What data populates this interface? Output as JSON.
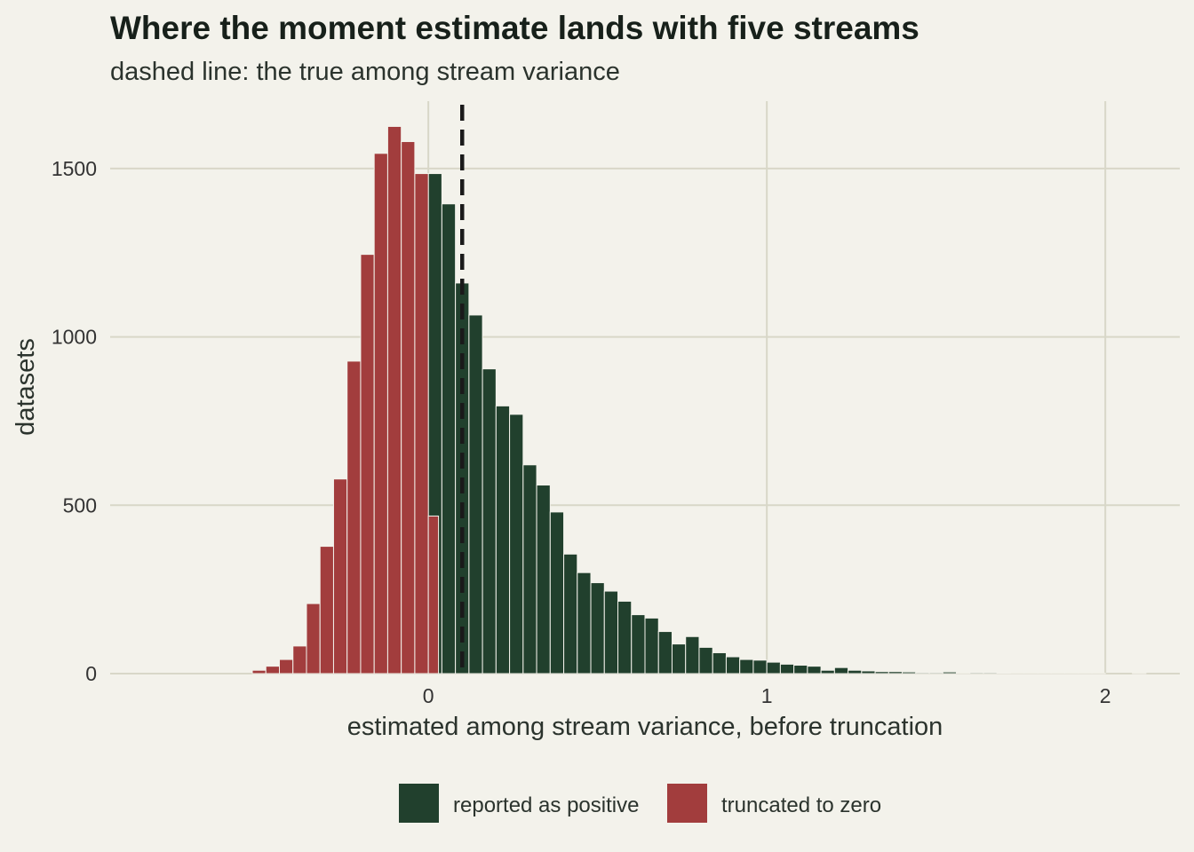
{
  "chart_data": {
    "type": "bar",
    "title": "Where the moment estimate lands with five streams",
    "subtitle": "dashed line: the true among stream variance",
    "xlabel": "estimated among stream variance, before truncation",
    "ylabel": "datasets",
    "xlim": [
      -0.94,
      2.22
    ],
    "ylim": [
      0,
      1700
    ],
    "x_ticks": [
      0,
      1,
      2
    ],
    "x_tick_labels": [
      "0",
      "1",
      "2"
    ],
    "y_ticks": [
      0,
      500,
      1000,
      1500
    ],
    "y_tick_labels": [
      "0",
      "500",
      "1000",
      "1500"
    ],
    "bin_width": 0.04,
    "true_value": 0.1,
    "grid": true,
    "legend_position": "bottom",
    "colors": {
      "positive": "#21402d",
      "truncated": "#a23d3d",
      "reference_line": "#1a1a1a"
    },
    "series": [
      {
        "name": "reported as positive",
        "color": "#21402d",
        "bins": [
          [
            0,
            0.04,
            1485
          ],
          [
            0.04,
            0.08,
            1395
          ],
          [
            0.08,
            0.12,
            1160
          ],
          [
            0.12,
            0.16,
            1065
          ],
          [
            0.16,
            0.2,
            905
          ],
          [
            0.2,
            0.24,
            795
          ],
          [
            0.24,
            0.28,
            770
          ],
          [
            0.28,
            0.32,
            620
          ],
          [
            0.32,
            0.36,
            560
          ],
          [
            0.36,
            0.4,
            480
          ],
          [
            0.4,
            0.44,
            355
          ],
          [
            0.44,
            0.48,
            300
          ],
          [
            0.48,
            0.52,
            270
          ],
          [
            0.52,
            0.56,
            245
          ],
          [
            0.56,
            0.6,
            215
          ],
          [
            0.6,
            0.64,
            175
          ],
          [
            0.64,
            0.68,
            165
          ],
          [
            0.68,
            0.72,
            125
          ],
          [
            0.72,
            0.76,
            88
          ],
          [
            0.76,
            0.8,
            110
          ],
          [
            0.8,
            0.84,
            78
          ],
          [
            0.84,
            0.88,
            62
          ],
          [
            0.88,
            0.92,
            50
          ],
          [
            0.92,
            0.96,
            42
          ],
          [
            0.96,
            1.0,
            40
          ],
          [
            1.0,
            1.04,
            34
          ],
          [
            1.04,
            1.08,
            28
          ],
          [
            1.08,
            1.12,
            25
          ],
          [
            1.12,
            1.16,
            22
          ],
          [
            1.16,
            1.2,
            10
          ],
          [
            1.2,
            1.24,
            18
          ],
          [
            1.24,
            1.28,
            10
          ],
          [
            1.28,
            1.32,
            8
          ],
          [
            1.32,
            1.36,
            6
          ],
          [
            1.36,
            1.4,
            6
          ],
          [
            1.4,
            1.44,
            5
          ],
          [
            1.44,
            1.48,
            3
          ],
          [
            1.48,
            1.52,
            3
          ],
          [
            1.52,
            1.56,
            5
          ],
          [
            1.56,
            1.6,
            1
          ],
          [
            1.6,
            1.64,
            3
          ],
          [
            1.64,
            1.68,
            3
          ],
          [
            1.68,
            1.72,
            2
          ],
          [
            1.72,
            1.76,
            1
          ],
          [
            1.76,
            1.8,
            1
          ],
          [
            1.8,
            1.84,
            1
          ],
          [
            1.84,
            1.88,
            1
          ],
          [
            1.88,
            1.92,
            1
          ],
          [
            1.92,
            1.96,
            1
          ],
          [
            1.96,
            2.0,
            1
          ],
          [
            2.0,
            2.04,
            0
          ],
          [
            2.04,
            2.08,
            0
          ],
          [
            2.08,
            2.12,
            1
          ]
        ]
      },
      {
        "name": "truncated to zero",
        "color": "#a23d3d",
        "bins": [
          [
            -0.52,
            -0.48,
            10
          ],
          [
            -0.48,
            -0.44,
            22
          ],
          [
            -0.44,
            -0.4,
            42
          ],
          [
            -0.4,
            -0.36,
            82
          ],
          [
            -0.36,
            -0.32,
            208
          ],
          [
            -0.32,
            -0.28,
            378
          ],
          [
            -0.28,
            -0.24,
            578
          ],
          [
            -0.24,
            -0.2,
            928
          ],
          [
            -0.2,
            -0.16,
            1245
          ],
          [
            -0.16,
            -0.12,
            1545
          ],
          [
            -0.12,
            -0.08,
            1625
          ],
          [
            -0.08,
            -0.04,
            1580
          ],
          [
            -0.04,
            0,
            1485
          ],
          [
            0,
            0.03,
            468
          ]
        ]
      }
    ]
  }
}
